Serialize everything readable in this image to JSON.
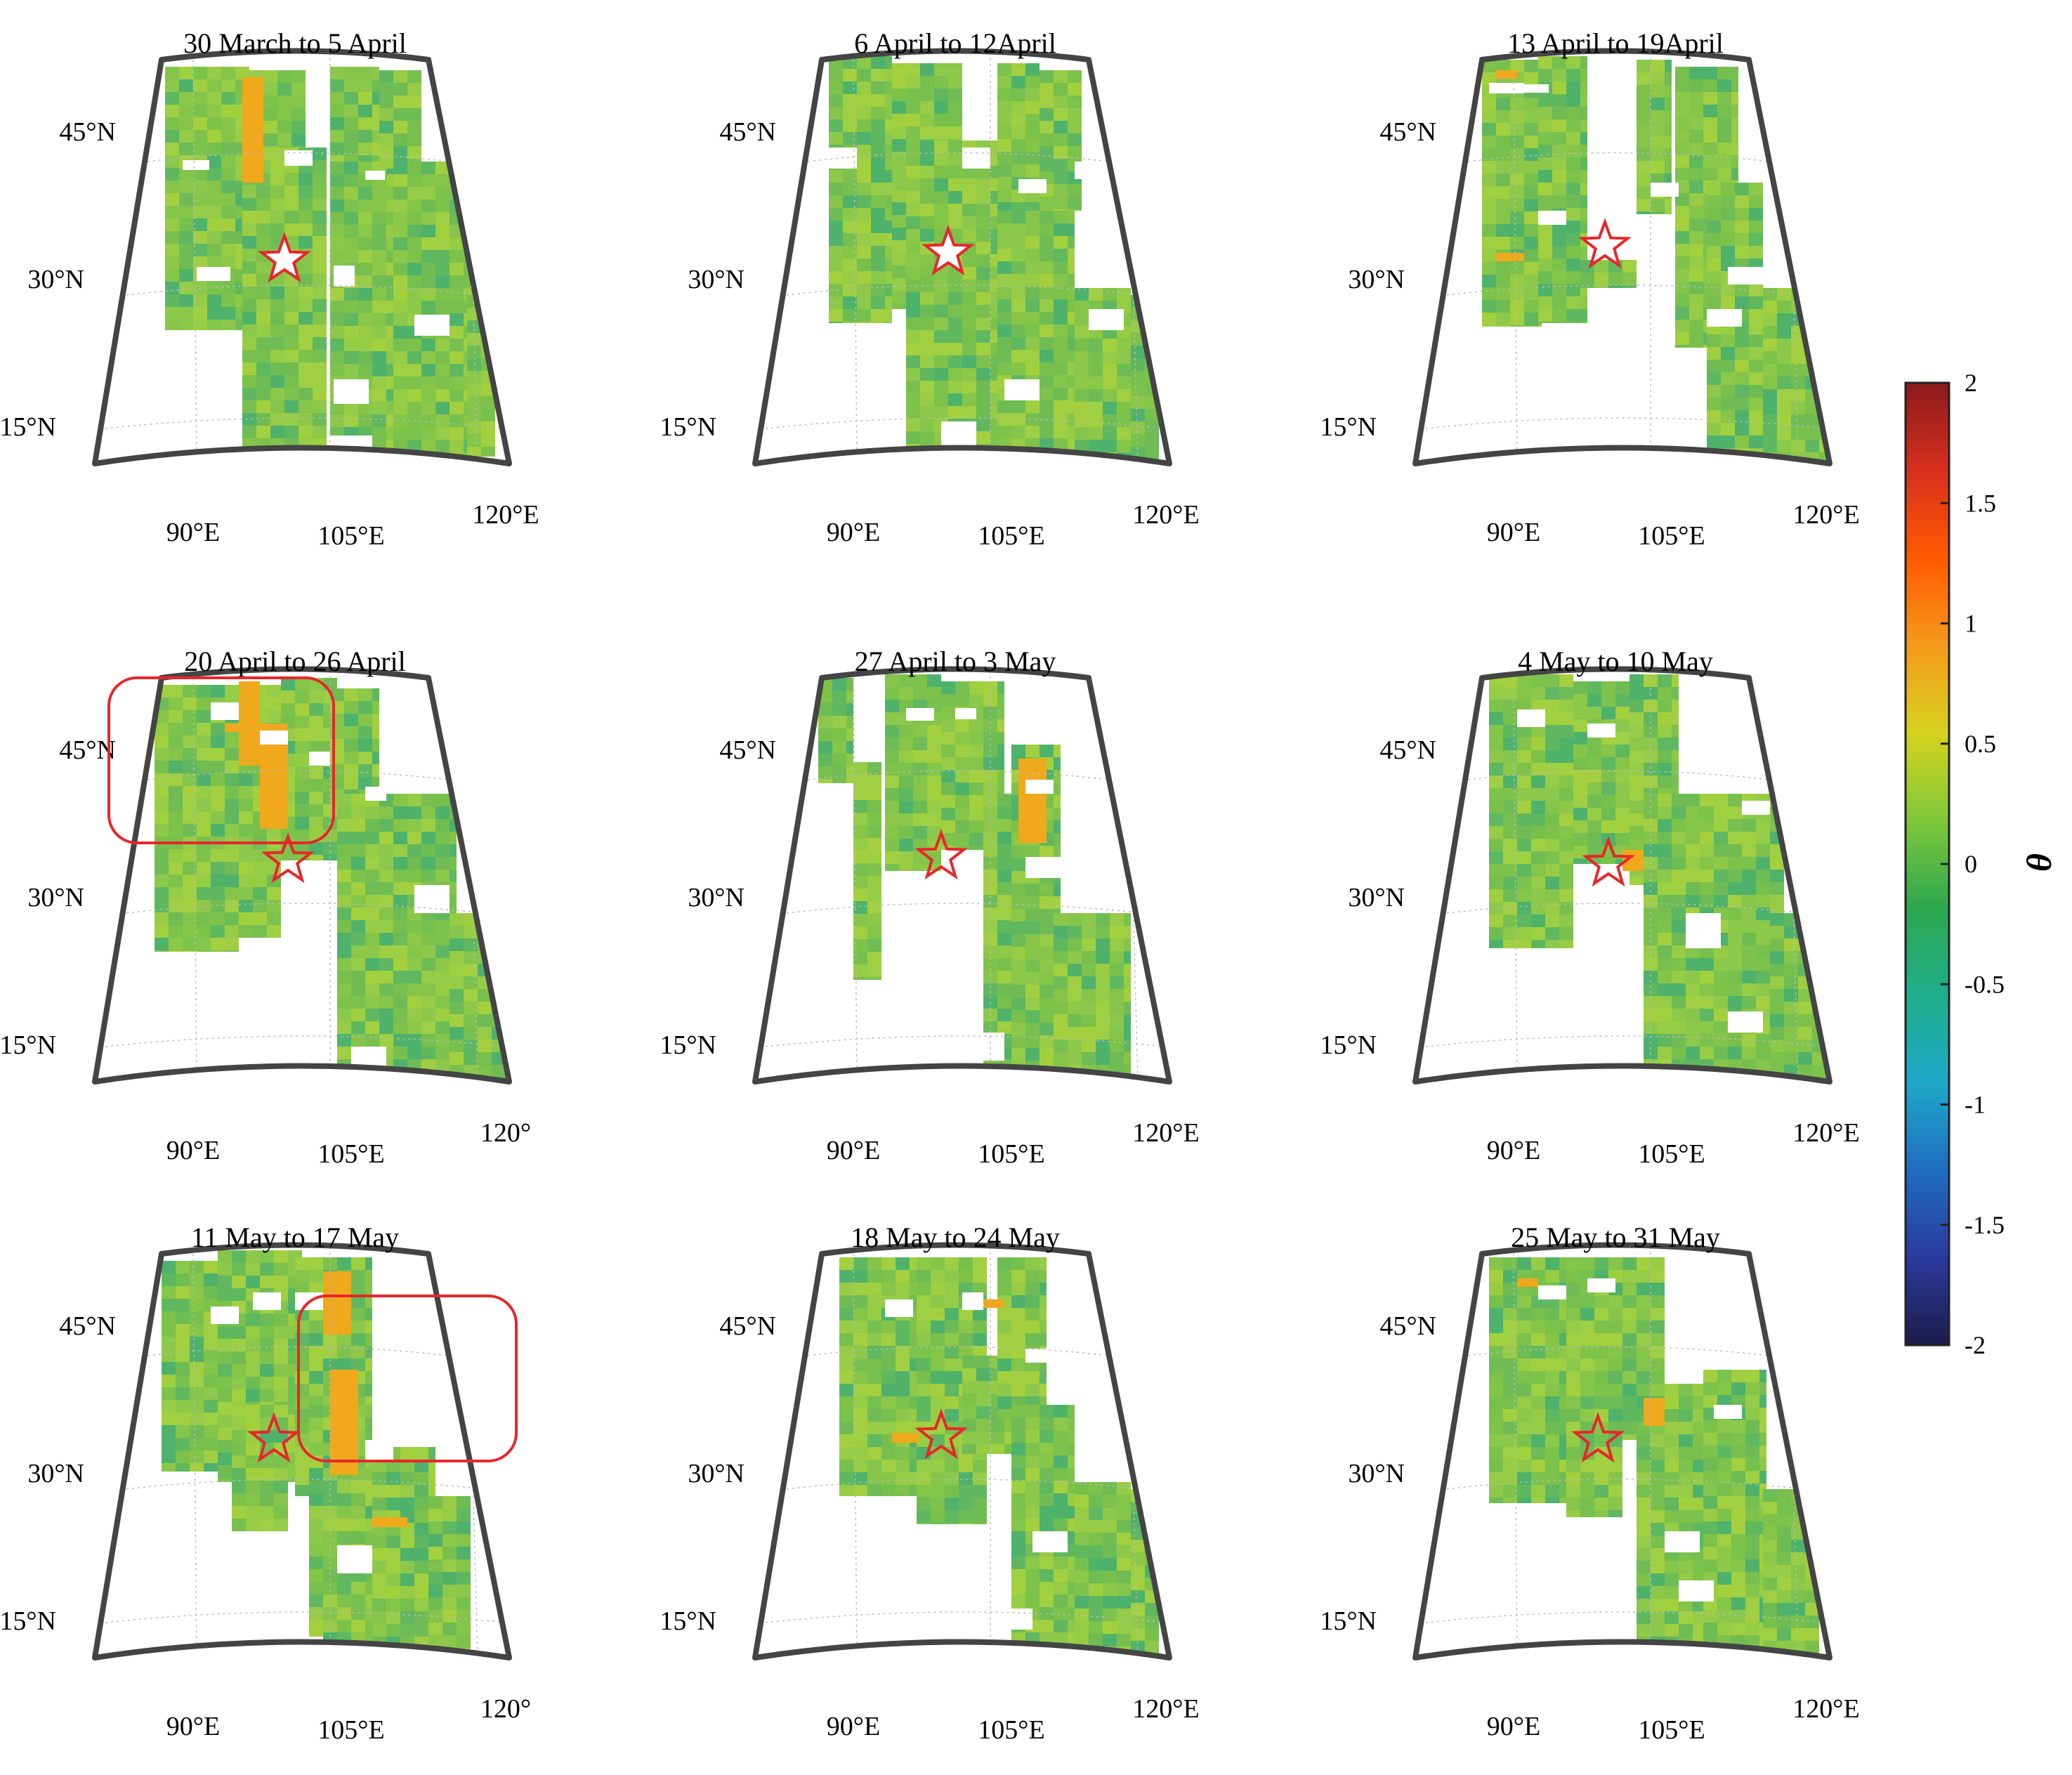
{
  "figure": {
    "panels": [
      {
        "id": "p1",
        "title": "30 March to 5 April",
        "lat_labels": [
          "45°N",
          "30°N",
          "15°N"
        ],
        "lon_labels": [
          "90°E",
          "105°E",
          "120°E"
        ],
        "has_highlight": false
      },
      {
        "id": "p2",
        "title": "6 April to 12April",
        "lat_labels": [
          "45°N",
          "30°N",
          "15°N"
        ],
        "lon_labels": [
          "90°E",
          "105°E",
          "120°E"
        ],
        "has_highlight": false
      },
      {
        "id": "p3",
        "title": "13 April to 19April",
        "lat_labels": [
          "45°N",
          "30°N",
          "15°N"
        ],
        "lon_labels": [
          "90°E",
          "105°E",
          "120°E"
        ],
        "has_highlight": false
      },
      {
        "id": "p4",
        "title": "20 April to 26 April",
        "lat_labels": [
          "45°N",
          "30°N",
          "15°N"
        ],
        "lon_labels": [
          "90°E",
          "105°E",
          "120°"
        ],
        "has_highlight": true
      },
      {
        "id": "p5",
        "title": "27 April to 3 May",
        "lat_labels": [
          "45°N",
          "30°N",
          "15°N"
        ],
        "lon_labels": [
          "90°E",
          "105°E",
          "120°E"
        ],
        "has_highlight": false
      },
      {
        "id": "p6",
        "title": "4 May to 10 May",
        "lat_labels": [
          "45°N",
          "30°N",
          "15°N"
        ],
        "lon_labels": [
          "90°E",
          "105°E",
          "120°E"
        ],
        "has_highlight": false
      },
      {
        "id": "p7",
        "title": "11 May to 17 May",
        "lat_labels": [
          "45°N",
          "30°N",
          "15°N"
        ],
        "lon_labels": [
          "90°E",
          "105°E",
          "120°"
        ],
        "has_highlight": true
      },
      {
        "id": "p8",
        "title": "18 May to 24 May",
        "lat_labels": [
          "45°N",
          "30°N",
          "15°N"
        ],
        "lon_labels": [
          "90°E",
          "105°E",
          "120°E"
        ],
        "has_highlight": false
      },
      {
        "id": "p9",
        "title": "25 May to 31 May",
        "lat_labels": [
          "45°N",
          "30°N",
          "15°N"
        ],
        "lon_labels": [
          "90°E",
          "105°E",
          "120°E"
        ],
        "has_highlight": false
      }
    ],
    "colorbar": {
      "label": "θ",
      "ticks": [
        "2",
        "1.5",
        "1",
        "0.5",
        "0",
        "-0.5",
        "-1",
        "-1.5",
        "-2"
      ],
      "range": [
        -2,
        2
      ],
      "colors": [
        "#8b1a1a",
        "#d7301f",
        "#ff5a00",
        "#f59a1c",
        "#d6d21c",
        "#7ec83a",
        "#2ea84f",
        "#1fae8a",
        "#1fa8c9",
        "#1f6ec0",
        "#2a3a9c",
        "#1c1c4a"
      ]
    },
    "colors": {
      "map_green": "#8cc84a",
      "highlight": "#e8262b",
      "epicenter_star": "#e8262b",
      "frame": "#444444"
    }
  }
}
